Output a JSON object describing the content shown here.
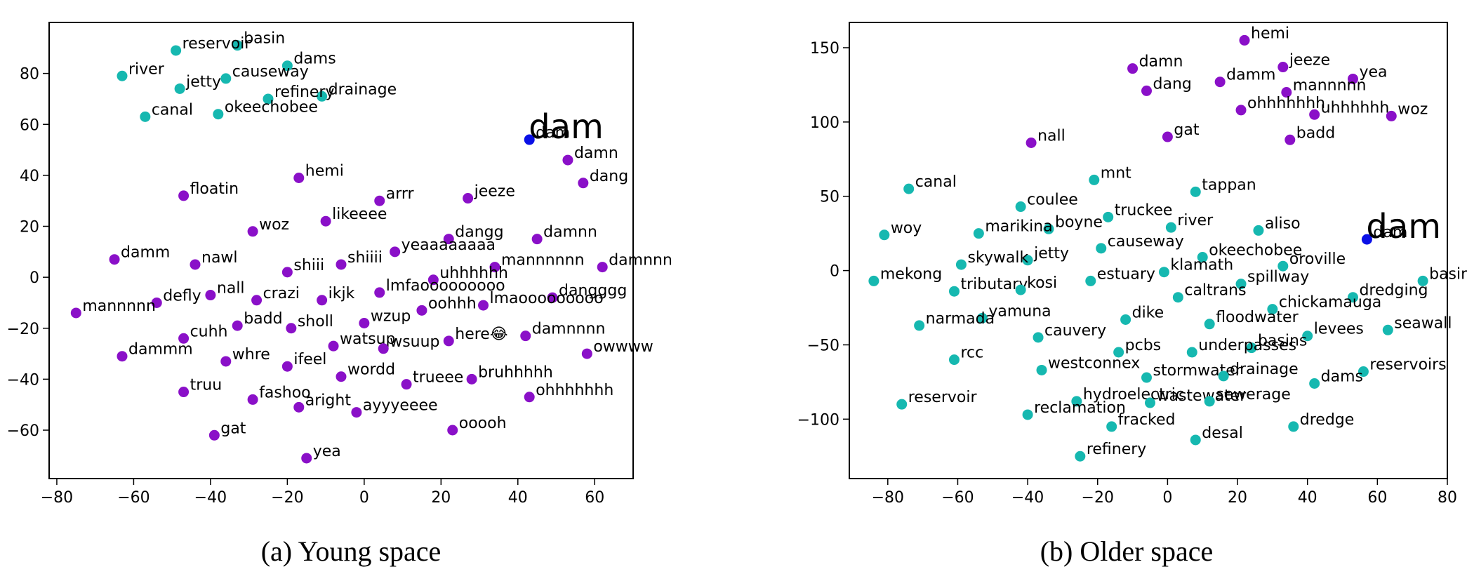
{
  "colors": {
    "young_word": "#8a10c8",
    "place_word": "#16b8b0",
    "target_word": "#0a10e6"
  },
  "captions": {
    "left": "(a) Young space",
    "right": "(b) Older space"
  },
  "chart_data": [
    {
      "type": "scatter",
      "title": "",
      "xlabel": "",
      "ylabel": "",
      "xlim": [
        -82,
        70
      ],
      "ylim": [
        -79,
        100
      ],
      "xticks": [
        -80,
        -60,
        -40,
        -20,
        0,
        20,
        40,
        60
      ],
      "yticks": [
        -60,
        -40,
        -20,
        0,
        20,
        40,
        60,
        80
      ],
      "grid": false,
      "highlight": {
        "label": "dam",
        "x": 43,
        "y": 54
      },
      "points": [
        {
          "label": "basin",
          "x": -33,
          "y": 91,
          "group": "place"
        },
        {
          "label": "reservoir",
          "x": -49,
          "y": 89,
          "group": "place"
        },
        {
          "label": "dams",
          "x": -20,
          "y": 83,
          "group": "place"
        },
        {
          "label": "river",
          "x": -63,
          "y": 79,
          "group": "place"
        },
        {
          "label": "causeway",
          "x": -36,
          "y": 78,
          "group": "place"
        },
        {
          "label": "jetty",
          "x": -48,
          "y": 74,
          "group": "place"
        },
        {
          "label": "drainage",
          "x": -11,
          "y": 71,
          "group": "place"
        },
        {
          "label": "refinery",
          "x": -25,
          "y": 70,
          "group": "place"
        },
        {
          "label": "okeechobee",
          "x": -38,
          "y": 64,
          "group": "place"
        },
        {
          "label": "canal",
          "x": -57,
          "y": 63,
          "group": "place"
        },
        {
          "label": "dam",
          "x": 43,
          "y": 54,
          "group": "target"
        },
        {
          "label": "damn",
          "x": 53,
          "y": 46,
          "group": "young"
        },
        {
          "label": "hemi",
          "x": -17,
          "y": 39,
          "group": "young"
        },
        {
          "label": "dang",
          "x": 57,
          "y": 37,
          "group": "young"
        },
        {
          "label": "floatin",
          "x": -47,
          "y": 32,
          "group": "young"
        },
        {
          "label": "jeeze",
          "x": 27,
          "y": 31,
          "group": "young"
        },
        {
          "label": "arrr",
          "x": 4,
          "y": 30,
          "group": "young"
        },
        {
          "label": "likeeee",
          "x": -10,
          "y": 22,
          "group": "young"
        },
        {
          "label": "woz",
          "x": -29,
          "y": 18,
          "group": "young"
        },
        {
          "label": "damnn",
          "x": 45,
          "y": 15,
          "group": "young"
        },
        {
          "label": "dangg",
          "x": 22,
          "y": 15,
          "group": "young"
        },
        {
          "label": "yeaaaaaaaa",
          "x": 8,
          "y": 10,
          "group": "young"
        },
        {
          "label": "damm",
          "x": -65,
          "y": 7,
          "group": "young"
        },
        {
          "label": "nawl",
          "x": -44,
          "y": 5,
          "group": "young"
        },
        {
          "label": "shiiii",
          "x": -6,
          "y": 5,
          "group": "young"
        },
        {
          "label": "damnnn",
          "x": 62,
          "y": 4,
          "group": "young"
        },
        {
          "label": "mannnnnn",
          "x": 34,
          "y": 4,
          "group": "young"
        },
        {
          "label": "shiii",
          "x": -20,
          "y": 2,
          "group": "young"
        },
        {
          "label": "uhhhhhh",
          "x": 18,
          "y": -1,
          "group": "young"
        },
        {
          "label": "lmfaooooooooo",
          "x": 4,
          "y": -6,
          "group": "young"
        },
        {
          "label": "nall",
          "x": -40,
          "y": -7,
          "group": "young"
        },
        {
          "label": "dangggg",
          "x": 49,
          "y": -8,
          "group": "young"
        },
        {
          "label": "crazi",
          "x": -28,
          "y": -9,
          "group": "young"
        },
        {
          "label": "ikjk",
          "x": -11,
          "y": -9,
          "group": "young"
        },
        {
          "label": "defly",
          "x": -54,
          "y": -10,
          "group": "young"
        },
        {
          "label": "lmaooooooooo",
          "x": 31,
          "y": -11,
          "group": "young"
        },
        {
          "label": "oohhh",
          "x": 15,
          "y": -13,
          "group": "young"
        },
        {
          "label": "mannnnn",
          "x": -75,
          "y": -14,
          "group": "young"
        },
        {
          "label": "wzup",
          "x": 0,
          "y": -18,
          "group": "young"
        },
        {
          "label": "badd",
          "x": -33,
          "y": -19,
          "group": "young"
        },
        {
          "label": "sholl",
          "x": -19,
          "y": -20,
          "group": "young"
        },
        {
          "label": "damnnnn",
          "x": 42,
          "y": -23,
          "group": "young"
        },
        {
          "label": "cuhh",
          "x": -47,
          "y": -24,
          "group": "young"
        },
        {
          "label": "here😂",
          "x": 22,
          "y": -25,
          "group": "young"
        },
        {
          "label": "watsup",
          "x": -8,
          "y": -27,
          "group": "young"
        },
        {
          "label": "wsuup",
          "x": 5,
          "y": -28,
          "group": "young"
        },
        {
          "label": "owwww",
          "x": 58,
          "y": -30,
          "group": "young"
        },
        {
          "label": "dammm",
          "x": -63,
          "y": -31,
          "group": "young"
        },
        {
          "label": "whre",
          "x": -36,
          "y": -33,
          "group": "young"
        },
        {
          "label": "ifeel",
          "x": -20,
          "y": -35,
          "group": "young"
        },
        {
          "label": "wordd",
          "x": -6,
          "y": -39,
          "group": "young"
        },
        {
          "label": "bruhhhhh",
          "x": 28,
          "y": -40,
          "group": "young"
        },
        {
          "label": "trueee",
          "x": 11,
          "y": -42,
          "group": "young"
        },
        {
          "label": "truu",
          "x": -47,
          "y": -45,
          "group": "young"
        },
        {
          "label": "ohhhhhhh",
          "x": 43,
          "y": -47,
          "group": "young"
        },
        {
          "label": "fashoo",
          "x": -29,
          "y": -48,
          "group": "young"
        },
        {
          "label": "aright",
          "x": -17,
          "y": -51,
          "group": "young"
        },
        {
          "label": "ayyyeeee",
          "x": -2,
          "y": -53,
          "group": "young"
        },
        {
          "label": "ooooh",
          "x": 23,
          "y": -60,
          "group": "young"
        },
        {
          "label": "gat",
          "x": -39,
          "y": -62,
          "group": "young"
        },
        {
          "label": "yea",
          "x": -15,
          "y": -71,
          "group": "young"
        }
      ]
    },
    {
      "type": "scatter",
      "title": "",
      "xlabel": "",
      "ylabel": "",
      "xlim": [
        -91,
        80
      ],
      "ylim": [
        -140,
        167
      ],
      "xticks": [
        -80,
        -60,
        -40,
        -20,
        0,
        20,
        40,
        60,
        80
      ],
      "yticks": [
        -100,
        -50,
        0,
        50,
        100,
        150
      ],
      "grid": false,
      "highlight": {
        "label": "dam",
        "x": 57,
        "y": 21
      },
      "points": [
        {
          "label": "hemi",
          "x": 22,
          "y": 155,
          "group": "young"
        },
        {
          "label": "jeeze",
          "x": 33,
          "y": 137,
          "group": "young"
        },
        {
          "label": "damn",
          "x": -10,
          "y": 136,
          "group": "young"
        },
        {
          "label": "yea",
          "x": 53,
          "y": 129,
          "group": "young"
        },
        {
          "label": "damm",
          "x": 15,
          "y": 127,
          "group": "young"
        },
        {
          "label": "dang",
          "x": -6,
          "y": 121,
          "group": "young"
        },
        {
          "label": "mannnnn",
          "x": 34,
          "y": 120,
          "group": "young"
        },
        {
          "label": "ohhhhhhh",
          "x": 21,
          "y": 108,
          "group": "young"
        },
        {
          "label": "uhhhhhh",
          "x": 42,
          "y": 105,
          "group": "young"
        },
        {
          "label": "woz",
          "x": 64,
          "y": 104,
          "group": "young"
        },
        {
          "label": "gat",
          "x": 0,
          "y": 90,
          "group": "young"
        },
        {
          "label": "badd",
          "x": 35,
          "y": 88,
          "group": "young"
        },
        {
          "label": "nall",
          "x": -39,
          "y": 86,
          "group": "young"
        },
        {
          "label": "mnt",
          "x": -21,
          "y": 61,
          "group": "place"
        },
        {
          "label": "canal",
          "x": -74,
          "y": 55,
          "group": "place"
        },
        {
          "label": "tappan",
          "x": 8,
          "y": 53,
          "group": "place"
        },
        {
          "label": "coulee",
          "x": -42,
          "y": 43,
          "group": "place"
        },
        {
          "label": "truckee",
          "x": -17,
          "y": 36,
          "group": "place"
        },
        {
          "label": "river",
          "x": 1,
          "y": 29,
          "group": "place"
        },
        {
          "label": "aliso",
          "x": 26,
          "y": 27,
          "group": "place"
        },
        {
          "label": "boyne",
          "x": -34,
          "y": 28,
          "group": "place"
        },
        {
          "label": "marikina",
          "x": -54,
          "y": 25,
          "group": "place"
        },
        {
          "label": "woy",
          "x": -81,
          "y": 24,
          "group": "place"
        },
        {
          "label": "dam",
          "x": 57,
          "y": 21,
          "group": "target"
        },
        {
          "label": "causeway",
          "x": -19,
          "y": 15,
          "group": "place"
        },
        {
          "label": "okeechobee",
          "x": 10,
          "y": 9,
          "group": "place"
        },
        {
          "label": "jetty",
          "x": -40,
          "y": 7,
          "group": "place"
        },
        {
          "label": "skywalk",
          "x": -59,
          "y": 4,
          "group": "place"
        },
        {
          "label": "oroville",
          "x": 33,
          "y": 3,
          "group": "place"
        },
        {
          "label": "klamath",
          "x": -1,
          "y": -1,
          "group": "place"
        },
        {
          "label": "estuary",
          "x": -22,
          "y": -7,
          "group": "place"
        },
        {
          "label": "mekong",
          "x": -84,
          "y": -7,
          "group": "place"
        },
        {
          "label": "basin",
          "x": 73,
          "y": -7,
          "group": "place"
        },
        {
          "label": "spillway",
          "x": 21,
          "y": -9,
          "group": "place"
        },
        {
          "label": "tributary",
          "x": -61,
          "y": -14,
          "group": "place"
        },
        {
          "label": "kosi",
          "x": -42,
          "y": -13,
          "group": "place"
        },
        {
          "label": "caltrans",
          "x": 3,
          "y": -18,
          "group": "place"
        },
        {
          "label": "dredging",
          "x": 53,
          "y": -18,
          "group": "place"
        },
        {
          "label": "chickamauga",
          "x": 30,
          "y": -26,
          "group": "place"
        },
        {
          "label": "yamuna",
          "x": -53,
          "y": -32,
          "group": "place"
        },
        {
          "label": "dike",
          "x": -12,
          "y": -33,
          "group": "place"
        },
        {
          "label": "narmada",
          "x": -71,
          "y": -37,
          "group": "place"
        },
        {
          "label": "floodwater",
          "x": 12,
          "y": -36,
          "group": "place"
        },
        {
          "label": "seawall",
          "x": 63,
          "y": -40,
          "group": "place"
        },
        {
          "label": "levees",
          "x": 40,
          "y": -44,
          "group": "place"
        },
        {
          "label": "cauvery",
          "x": -37,
          "y": -45,
          "group": "place"
        },
        {
          "label": "basins",
          "x": 24,
          "y": -52,
          "group": "place"
        },
        {
          "label": "pcbs",
          "x": -14,
          "y": -55,
          "group": "place"
        },
        {
          "label": "underpasses",
          "x": 7,
          "y": -55,
          "group": "place"
        },
        {
          "label": "rcc",
          "x": -61,
          "y": -60,
          "group": "place"
        },
        {
          "label": "westconnex",
          "x": -36,
          "y": -67,
          "group": "place"
        },
        {
          "label": "reservoirs",
          "x": 56,
          "y": -68,
          "group": "place"
        },
        {
          "label": "stormwater",
          "x": -6,
          "y": -72,
          "group": "place"
        },
        {
          "label": "drainage",
          "x": 16,
          "y": -71,
          "group": "place"
        },
        {
          "label": "dams",
          "x": 42,
          "y": -76,
          "group": "place"
        },
        {
          "label": "hydroelectric",
          "x": -26,
          "y": -88,
          "group": "place"
        },
        {
          "label": "wastewater",
          "x": -5,
          "y": -89,
          "group": "place"
        },
        {
          "label": "sewerage",
          "x": 12,
          "y": -88,
          "group": "place"
        },
        {
          "label": "reservoir",
          "x": -76,
          "y": -90,
          "group": "place"
        },
        {
          "label": "reclamation",
          "x": -40,
          "y": -97,
          "group": "place"
        },
        {
          "label": "fracked",
          "x": -16,
          "y": -105,
          "group": "place"
        },
        {
          "label": "dredge",
          "x": 36,
          "y": -105,
          "group": "place"
        },
        {
          "label": "desal",
          "x": 8,
          "y": -114,
          "group": "place"
        },
        {
          "label": "refinery",
          "x": -25,
          "y": -125,
          "group": "place"
        }
      ]
    }
  ]
}
